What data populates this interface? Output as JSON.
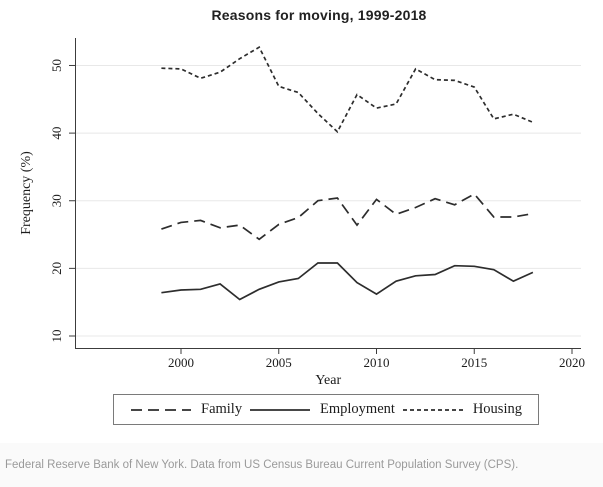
{
  "title": "Reasons for moving, 1999-2018",
  "chart_data": {
    "type": "line",
    "title": "Reasons for moving, 1999-2018",
    "xlabel": "Year",
    "ylabel": "Frequency (%)",
    "x_ticks": [
      2000,
      2005,
      2010,
      2015,
      2020
    ],
    "y_ticks": [
      10,
      20,
      30,
      40,
      50
    ],
    "xlim": [
      1994.6,
      2020.5
    ],
    "ylim": [
      8.2,
      54
    ],
    "grid": "horizontal gridlines only, light gray",
    "legend_position": "bottom",
    "line_color": "#2d2d2d",
    "grid_color": "#e8e8e8",
    "axis_color": "#3c3c3c",
    "x": [
      1999,
      2000,
      2001,
      2002,
      2003,
      2004,
      2005,
      2006,
      2007,
      2008,
      2009,
      2010,
      2011,
      2012,
      2013,
      2014,
      2015,
      2016,
      2017,
      2018
    ],
    "series": [
      {
        "name": "Family",
        "style": "long-dash",
        "values": [
          25.8,
          26.8,
          27.1,
          26.0,
          26.4,
          24.3,
          26.5,
          27.5,
          30.0,
          30.4,
          26.4,
          30.2,
          28.0,
          29.0,
          30.3,
          29.4,
          31.0,
          27.6,
          27.6,
          28.1
        ]
      },
      {
        "name": "Employment",
        "style": "solid",
        "values": [
          16.4,
          16.8,
          16.9,
          17.7,
          15.4,
          16.9,
          18.0,
          18.5,
          20.8,
          20.8,
          17.9,
          16.2,
          18.1,
          18.9,
          19.1,
          20.4,
          20.3,
          19.8,
          18.1,
          19.4
        ]
      },
      {
        "name": "Housing",
        "style": "short-dash",
        "values": [
          49.6,
          49.5,
          48.1,
          49.0,
          51.0,
          52.7,
          46.9,
          46.0,
          42.9,
          40.2,
          45.7,
          43.7,
          44.3,
          49.5,
          47.9,
          47.8,
          46.8,
          42.1,
          42.8,
          41.6
        ]
      }
    ]
  },
  "footer": {
    "text": "Federal Reserve Bank of New York. Data from US Census Bureau Current Population Survey (CPS)."
  }
}
